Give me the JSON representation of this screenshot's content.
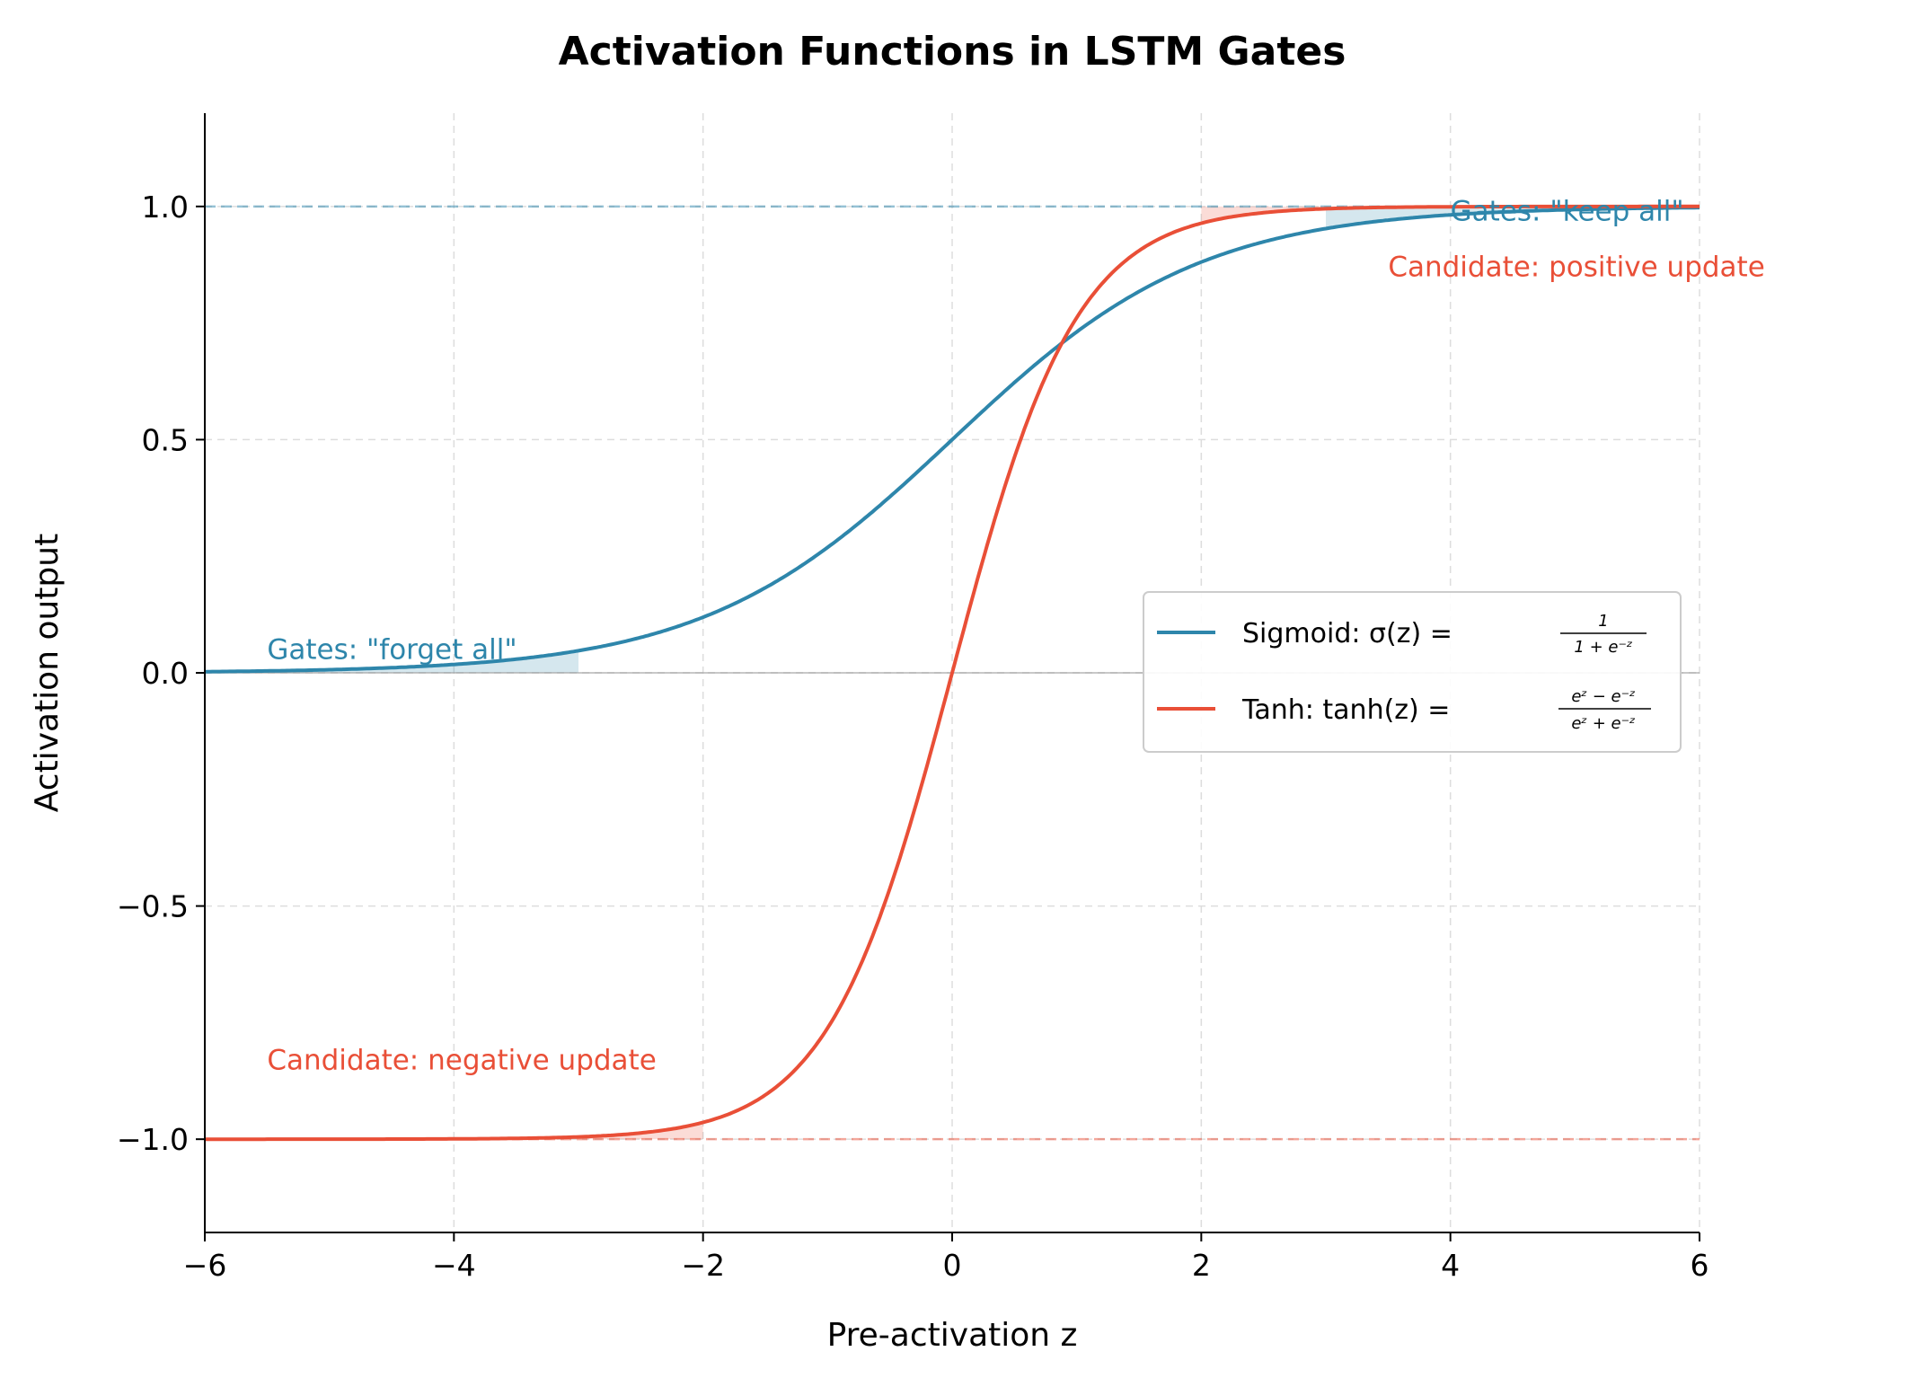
{
  "chart_data": {
    "type": "line",
    "title": "Activation Functions in LSTM Gates",
    "xlabel": "Pre-activation z",
    "ylabel": "Activation output",
    "xlim": [
      -6,
      6
    ],
    "ylim": [
      -1.2,
      1.2
    ],
    "xticks": [
      -6,
      -4,
      -2,
      0,
      2,
      4,
      6
    ],
    "xtick_labels": [
      "−6",
      "−4",
      "−2",
      "0",
      "2",
      "4",
      "6"
    ],
    "yticks": [
      -1.0,
      -0.5,
      0.0,
      0.5,
      1.0
    ],
    "ytick_labels": [
      "−1.0",
      "−0.5",
      "0.0",
      "0.5",
      "1.0"
    ],
    "grid": true,
    "legend_position": "center-right",
    "series": [
      {
        "name": "Sigmoid: σ(z) = 1 / (1 + e^−z)",
        "legend_text": "Sigmoid: σ(z) =",
        "formula_num": "1",
        "formula_den": "1 + e⁻ᶻ",
        "function": "sigmoid",
        "color": "#2e86ab"
      },
      {
        "name": "Tanh: tanh(z) = (e^z − e^−z) / (e^z + e^−z)",
        "legend_text": "Tanh: tanh(z) =",
        "formula_num": "eᶻ − e⁻ᶻ",
        "formula_den": "eᶻ + e⁻ᶻ",
        "function": "tanh",
        "color": "#e94f37"
      }
    ],
    "reference_lines": [
      {
        "y": 1.0,
        "color": "#2e86ab",
        "style": "dashed"
      },
      {
        "y": -1.0,
        "color": "#e94f37",
        "style": "dashed"
      },
      {
        "y": 0.0,
        "color": "#999999",
        "style": "solid"
      }
    ],
    "shaded_regions": [
      {
        "series": "sigmoid",
        "x_range": [
          -6,
          -3
        ],
        "between": "0 and curve"
      },
      {
        "series": "sigmoid",
        "x_range": [
          3,
          6
        ],
        "between": "curve and 1"
      },
      {
        "series": "tanh",
        "x_range": [
          -6,
          -2
        ],
        "between": "-1 and curve"
      },
      {
        "series": "tanh",
        "x_range": [
          2,
          6
        ],
        "between": "curve and 1"
      }
    ],
    "annotations": [
      {
        "text": "Gates: \"forget all\"",
        "x": -5.5,
        "y": 0.03,
        "color": "#2e86ab"
      },
      {
        "text": "Gates: \"keep all\"",
        "x": 4.0,
        "y": 0.97,
        "color": "#2e86ab"
      },
      {
        "text": "Candidate: positive update",
        "x": 3.5,
        "y": 0.85,
        "color": "#e94f37"
      },
      {
        "text": "Candidate: negative update",
        "x": -5.5,
        "y": -0.85,
        "color": "#e94f37"
      }
    ]
  }
}
